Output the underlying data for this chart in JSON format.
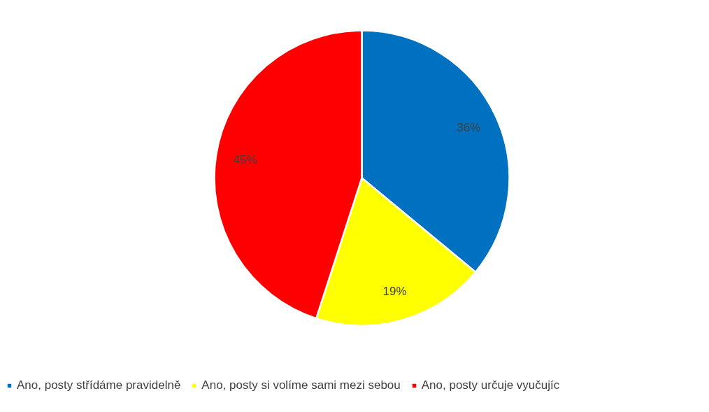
{
  "chart_data": {
    "type": "pie",
    "categories": [
      "Ano, posty střídáme pravidelně",
      "Ano, posty si volíme sami mezi sebou",
      "Ano, posty určuje vyučujíc"
    ],
    "values": [
      36,
      19,
      45
    ],
    "colors": [
      "#0070c0",
      "#ffff00",
      "#ff0000"
    ],
    "value_labels": [
      "36%",
      "19%",
      "45%"
    ],
    "legend": "bottom"
  }
}
